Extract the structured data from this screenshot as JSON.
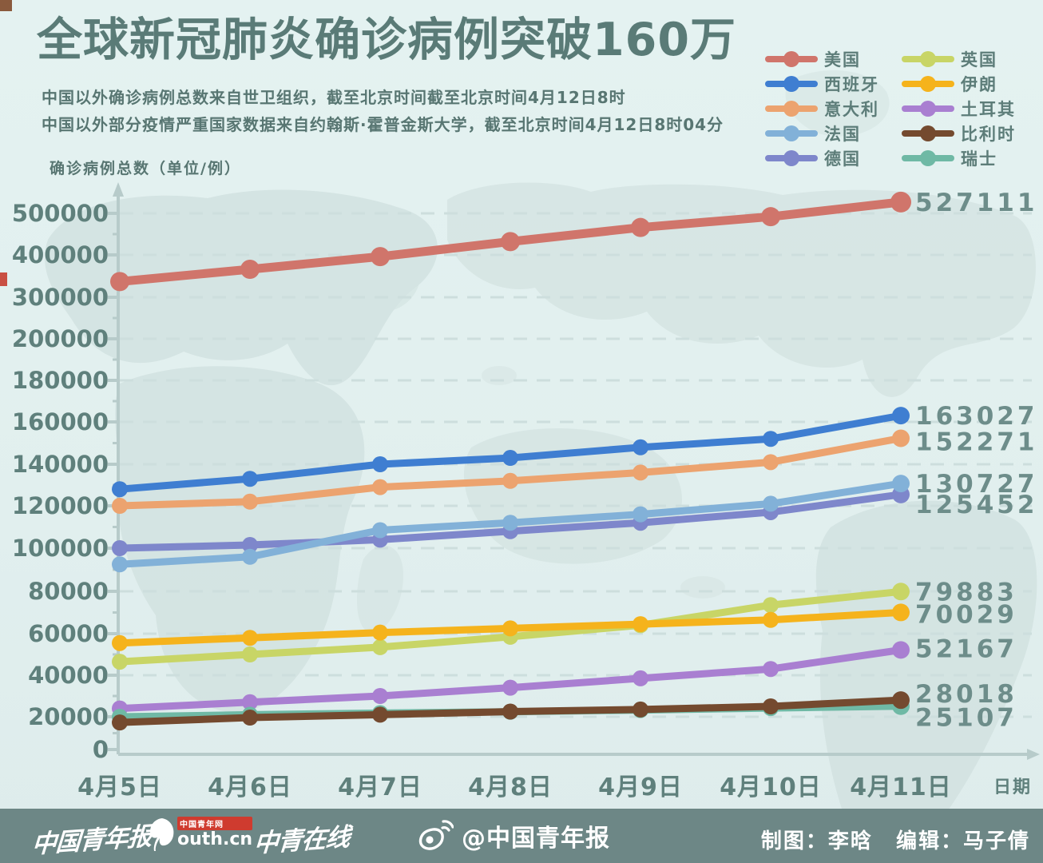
{
  "header": {
    "title": "全球新冠肺炎确诊病例突破160万",
    "subtitle_line1": "中国以外确诊病例总数来自世卫组织，截至北京时间截至北京时间4月12日8时",
    "subtitle_line2": "中国以外部分疫情严重国家数据来自约翰斯·霍普金斯大学，截至北京时间4月12日8时04分"
  },
  "y_axis_title": "确诊病例总数（单位/例）",
  "x_axis_title": "日期",
  "colors": {
    "background": "#e3f1f0",
    "map_land": "#d3e2e1",
    "title_text": "#5a7b77",
    "axis_text": "#5f807c",
    "value_label_text": "#6d8d8a",
    "gridline": "#cddedd",
    "axis_line": "#b7cbca",
    "footer_bg": "#6d8786"
  },
  "legend": [
    {
      "label": "美国",
      "color": "#d0756b"
    },
    {
      "label": "西班牙",
      "color": "#3f7ed1"
    },
    {
      "label": "意大利",
      "color": "#eca36f"
    },
    {
      "label": "法国",
      "color": "#82b1d8"
    },
    {
      "label": "德国",
      "color": "#7e87cb"
    },
    {
      "label": "英国",
      "color": "#c8d566"
    },
    {
      "label": "伊朗",
      "color": "#f5b31c"
    },
    {
      "label": "土耳其",
      "color": "#a97fd1"
    },
    {
      "label": "比利时",
      "color": "#744a2f"
    },
    {
      "label": "瑞士",
      "color": "#6fb9a5"
    }
  ],
  "chart_data": {
    "type": "line",
    "title": "全球新冠肺炎确诊病例突破160万",
    "xlabel": "日期",
    "ylabel": "确诊病例总数（单位/例）",
    "x_categories": [
      "4月5日",
      "4月6日",
      "4月7日",
      "4月8日",
      "4月9日",
      "4月10日",
      "4月11日"
    ],
    "y_ticks": [
      0,
      20000,
      40000,
      60000,
      80000,
      100000,
      120000,
      140000,
      160000,
      180000,
      200000,
      300000,
      400000,
      500000
    ],
    "y_axis_note": "non-linear axis: equal visual spacing per tick, steps of 20000 up to 200000 then 100000 per step; dashed gridlines on",
    "legend_position": "top-right, two columns",
    "series": [
      {
        "name": "美国",
        "color": "#d0756b",
        "values": [
          337000,
          366000,
          396000,
          432000,
          466000,
          492000,
          527111
        ],
        "end_label": "527111"
      },
      {
        "name": "西班牙",
        "color": "#3f7ed1",
        "values": [
          128000,
          133000,
          140000,
          143000,
          148000,
          152000,
          163027
        ],
        "end_label": "163027"
      },
      {
        "name": "意大利",
        "color": "#eca36f",
        "values": [
          120000,
          122000,
          129000,
          132000,
          136000,
          141000,
          152271
        ],
        "end_label": "152271"
      },
      {
        "name": "法国",
        "color": "#82b1d8",
        "values": [
          92500,
          96000,
          108500,
          112000,
          116000,
          121000,
          130727
        ],
        "end_label": "130727"
      },
      {
        "name": "德国",
        "color": "#7e87cb",
        "values": [
          100000,
          101500,
          104000,
          108000,
          112000,
          117000,
          125452
        ],
        "end_label": "125452"
      },
      {
        "name": "英国",
        "color": "#c8d566",
        "values": [
          46500,
          50000,
          53500,
          58500,
          64000,
          73500,
          79883
        ],
        "end_label": "79883"
      },
      {
        "name": "伊朗",
        "color": "#f5b31c",
        "values": [
          55500,
          58000,
          60500,
          62500,
          64500,
          66500,
          70029
        ],
        "end_label": "70029"
      },
      {
        "name": "土耳其",
        "color": "#a97fd1",
        "values": [
          24000,
          27000,
          30000,
          34000,
          38500,
          43000,
          52167
        ],
        "end_label": "52167"
      },
      {
        "name": "比利时",
        "color": "#744a2f",
        "values": [
          16500,
          19500,
          21000,
          22500,
          23500,
          25000,
          28018
        ],
        "end_label": "28018"
      },
      {
        "name": "瑞士",
        "color": "#6fb9a5",
        "values": [
          20000,
          21000,
          21800,
          22400,
          23200,
          24200,
          25107
        ],
        "end_label": "25107"
      }
    ]
  },
  "footer": {
    "logo_cyd": "中国青年报",
    "logo_youth_badge": "中国青年网",
    "logo_youth_text": "outh.cn",
    "logo_zqzx": "中青在线",
    "weibo_handle": "@中国青年报",
    "credit_designer": "制图：李晗",
    "credit_editor": "编辑：马子倩"
  }
}
